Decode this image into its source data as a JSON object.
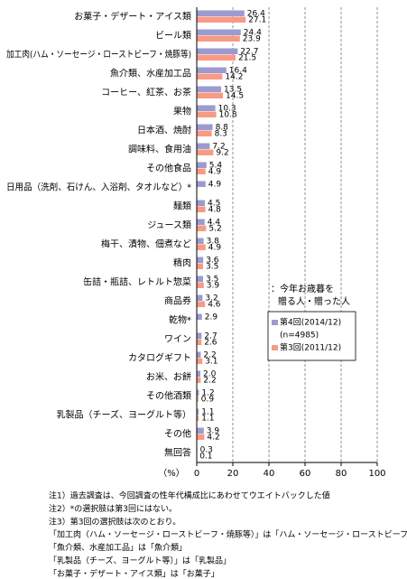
{
  "chart_data": {
    "type": "bar",
    "orientation": "horizontal",
    "categories": [
      "お菓子・デザート・アイス類",
      "ビール類",
      "加工肉(ハム・ソーセージ・ローストビーフ・焼豚等)",
      "魚介類、水産加工品",
      "コーヒー、紅茶、お茶",
      "果物",
      "日本酒、焼酎",
      "調味料、食用油",
      "その他食品",
      "日用品（洗剤、石けん、入浴剤、タオルなど）*",
      "麺類",
      "ジュース類",
      "梅干、漬物、佃煮など",
      "精肉",
      "缶詰・瓶詰、レトルト惣菜",
      "商品券",
      "乾物*",
      "ワイン",
      "カタログギフト",
      "お米、お餅",
      "その他酒類",
      "乳製品（チーズ、ヨーグルト等）",
      "その他",
      "無回答"
    ],
    "series": [
      {
        "name": "第4回(2014/12)",
        "color": "#9b9bcf",
        "values": [
          26.4,
          24.4,
          22.7,
          16.4,
          13.5,
          10.3,
          8.8,
          7.2,
          5.4,
          4.9,
          4.5,
          4.4,
          3.8,
          3.6,
          3.5,
          3.2,
          2.9,
          2.7,
          2.2,
          2.0,
          1.2,
          1.1,
          3.9,
          0.3
        ],
        "value_labels": [
          "26.4",
          "24.4",
          "22.7",
          "16.4",
          "13.5",
          "10.3",
          "8.8",
          "7.2",
          "5.4",
          "4.9",
          "4.5",
          "4.4",
          "3.8",
          "3.6",
          "3.5",
          "3.2",
          "2.9",
          "2.7",
          "2.2",
          "2.0",
          "1.2",
          "1.1",
          "3.9",
          "0.3"
        ]
      },
      {
        "name": "第3回(2011/12)",
        "color": "#f79a86",
        "values": [
          27.1,
          23.9,
          21.5,
          14.2,
          14.5,
          10.8,
          8.3,
          9.2,
          4.9,
          null,
          4.8,
          5.2,
          4.9,
          3.5,
          3.9,
          4.6,
          null,
          2.6,
          3.1,
          2.2,
          0.9,
          1.1,
          4.2,
          0.1
        ],
        "value_labels": [
          "27.1",
          "23.9",
          "21.5",
          "14.2",
          "14.5",
          "10.8",
          "8.3",
          "9.2",
          "4.9",
          null,
          "4.8",
          "5.2",
          "4.9",
          "3.5",
          "3.9",
          "4.6",
          null,
          "2.6",
          "3.1",
          "2.2",
          "0.9",
          "1.1",
          "4.2",
          "0.1"
        ]
      }
    ],
    "legend_title": [
      "：今年お歳暮を",
      "贈る人・贈った人"
    ],
    "legend_note": "(n=4985)",
    "x_label": "（%）",
    "xlim": [
      0,
      100
    ],
    "xticks": [
      0,
      20,
      40,
      60,
      80,
      100
    ],
    "grid": true
  },
  "notes": [
    "注1）過去調査は、今回調査の性年代構成比にあわせてウエイトバックした値",
    "注2）*の選択肢は第3回にはない。",
    "注3）第3回の選択肢は次のとおり。",
    "「加工肉（ハム・ソーセージ・ローストビーフ・焼豚等）」は「ハム・ソーセージ・ローストビーフ・焼豚」",
    "「魚介類、水産加工品」は「魚介類」",
    "「乳製品（チーズ、ヨーグルト等）」は「乳製品」",
    "「お菓子・デザート・アイス類」は「お菓子」"
  ]
}
